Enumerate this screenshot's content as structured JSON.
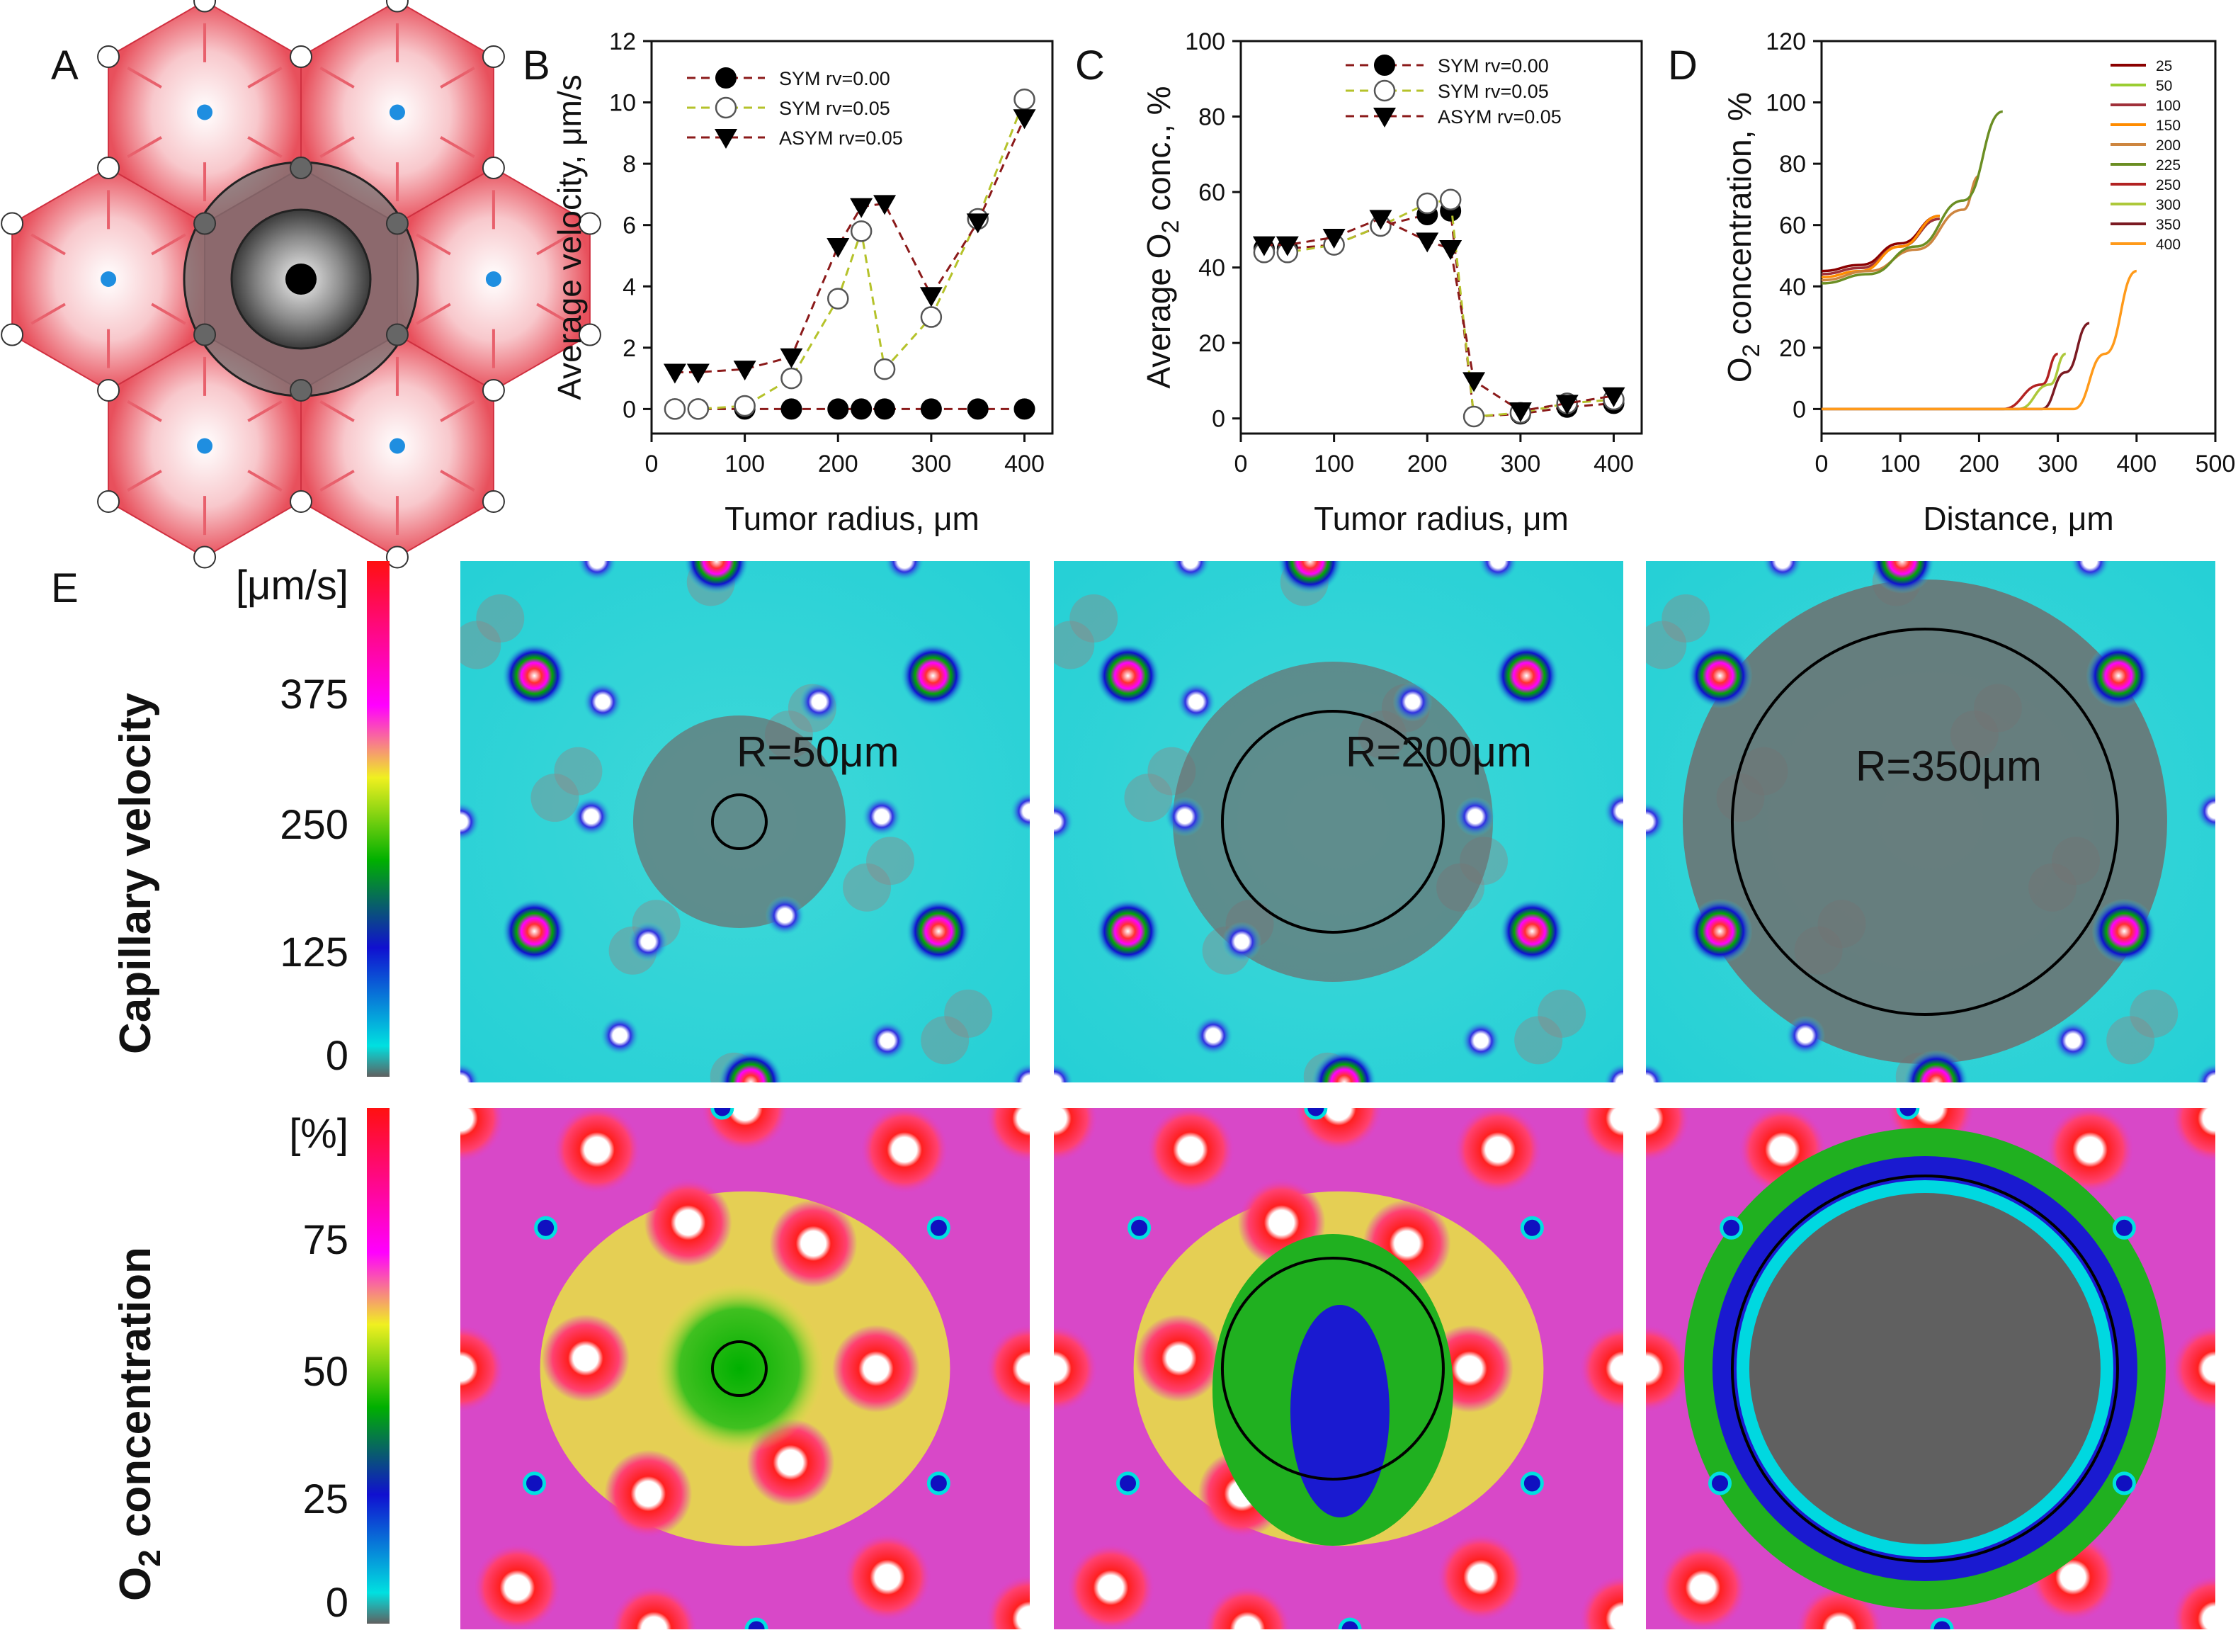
{
  "panel_labels": {
    "A": "A",
    "B": "B",
    "C": "C",
    "D": "D",
    "E": "E"
  },
  "chart_data": [
    {
      "id": "B",
      "type": "line",
      "title": "",
      "xlabel": "Tumor radius, μm",
      "ylabel": "Average velocity, μm/s",
      "xlim": [
        0,
        430
      ],
      "ylim": [
        -0.8,
        12
      ],
      "xticks": [
        0,
        100,
        200,
        300,
        400
      ],
      "yticks": [
        0,
        2,
        4,
        6,
        8,
        10,
        12
      ],
      "legend_position": "top-left",
      "series": [
        {
          "name": "SYM rv=0.00",
          "color": "#8b1a1a",
          "marker": "filled-circle",
          "x": [
            25,
            50,
            100,
            150,
            200,
            225,
            250,
            300,
            350,
            400
          ],
          "y": [
            0,
            0,
            0,
            0,
            0,
            0,
            0,
            0,
            0,
            0
          ]
        },
        {
          "name": "SYM rv=0.05",
          "color": "#b5c22a",
          "marker": "open-circle",
          "x": [
            25,
            50,
            100,
            150,
            200,
            225,
            250,
            300,
            350,
            400
          ],
          "y": [
            0,
            0,
            0.1,
            1.0,
            3.6,
            5.8,
            1.3,
            3.0,
            6.2,
            10.1
          ]
        },
        {
          "name": "ASYM rv=0.05",
          "color": "#8b1a1a",
          "marker": "down-triangle",
          "x": [
            25,
            50,
            100,
            150,
            200,
            225,
            250,
            300,
            350,
            400
          ],
          "y": [
            1.2,
            1.2,
            1.3,
            1.7,
            5.3,
            6.6,
            6.7,
            3.7,
            6.1,
            9.5
          ]
        }
      ]
    },
    {
      "id": "C",
      "type": "line",
      "title": "",
      "xlabel": "Tumor radius, μm",
      "ylabel": "Average O",
      "ylabel_sub": "2",
      "ylabel_tail": " conc., %",
      "xlim": [
        0,
        430
      ],
      "ylim": [
        -4,
        100
      ],
      "xticks": [
        0,
        100,
        200,
        300,
        400
      ],
      "yticks": [
        0,
        20,
        40,
        60,
        80,
        100
      ],
      "legend_position": "top-center",
      "series": [
        {
          "name": "SYM rv=0.00",
          "color": "#8b1a1a",
          "marker": "filled-circle",
          "x": [
            25,
            50,
            100,
            150,
            200,
            225,
            250,
            300,
            350,
            400
          ],
          "y": [
            45,
            45,
            46,
            51,
            54,
            55,
            0.5,
            1.2,
            3,
            4
          ]
        },
        {
          "name": "SYM rv=0.05",
          "color": "#b5c22a",
          "marker": "open-circle",
          "x": [
            25,
            50,
            100,
            150,
            200,
            225,
            250,
            300,
            350,
            400
          ],
          "y": [
            44,
            44,
            46,
            51,
            57,
            58,
            0.5,
            1.5,
            4,
            5
          ]
        },
        {
          "name": "ASYM rv=0.05",
          "color": "#8b1a1a",
          "marker": "down-triangle",
          "x": [
            25,
            50,
            100,
            150,
            200,
            225,
            250,
            300,
            350,
            400
          ],
          "y": [
            46,
            46,
            48,
            53,
            47,
            45,
            10,
            2,
            4,
            6
          ]
        }
      ]
    },
    {
      "id": "D",
      "type": "line",
      "title": "",
      "xlabel": "Distance, μm",
      "ylabel": "O",
      "ylabel_sub": "2",
      "ylabel_tail": " concentration, %",
      "xlim": [
        0,
        500
      ],
      "ylim": [
        -8,
        120
      ],
      "xticks": [
        0,
        100,
        200,
        300,
        400,
        500
      ],
      "yticks": [
        0,
        20,
        40,
        60,
        80,
        100,
        120
      ],
      "legend_position": "top-right",
      "series": [
        {
          "name": "25",
          "color": "#8b0000",
          "x": [
            0,
            50,
            100,
            150
          ],
          "y": [
            45,
            47,
            54,
            63
          ]
        },
        {
          "name": "50",
          "color": "#9acd32",
          "x": [
            0,
            50,
            100,
            150
          ],
          "y": [
            44,
            46,
            53,
            62
          ]
        },
        {
          "name": "100",
          "color": "#a0303a",
          "x": [
            0,
            50,
            100,
            150
          ],
          "y": [
            44,
            46,
            53,
            62
          ]
        },
        {
          "name": "150",
          "color": "#ff8c00",
          "x": [
            0,
            50,
            100,
            150
          ],
          "y": [
            43,
            45,
            53,
            63
          ]
        },
        {
          "name": "200",
          "color": "#cd853f",
          "x": [
            0,
            60,
            120,
            180,
            200
          ],
          "y": [
            42,
            45,
            52,
            65,
            76
          ]
        },
        {
          "name": "225",
          "color": "#6b8e23",
          "x": [
            0,
            60,
            120,
            180,
            230
          ],
          "y": [
            41,
            44,
            53,
            68,
            97
          ]
        },
        {
          "name": "250",
          "color": "#b22222",
          "x": [
            0,
            230,
            280,
            300
          ],
          "y": [
            0,
            0,
            8,
            18
          ]
        },
        {
          "name": "300",
          "color": "#adc83a",
          "x": [
            0,
            250,
            290,
            310
          ],
          "y": [
            0,
            0,
            8,
            18
          ]
        },
        {
          "name": "350",
          "color": "#7b1a22",
          "x": [
            0,
            280,
            310,
            340
          ],
          "y": [
            0,
            0,
            12,
            28
          ]
        },
        {
          "name": "400",
          "color": "#ff9a1a",
          "x": [
            0,
            320,
            360,
            400
          ],
          "y": [
            0,
            0,
            18,
            45
          ]
        }
      ]
    }
  ],
  "panel_e": {
    "row1_title": "Capillary velocity",
    "row1_unit": "[μm/s]",
    "row1_ticks": [
      "375",
      "250",
      "125",
      "0"
    ],
    "row2_title_prefix": "O",
    "row2_title_sub": "2",
    "row2_title_suffix": " concentration",
    "row2_unit": "[%]",
    "row2_ticks": [
      "75",
      "50",
      "25",
      "0"
    ],
    "radius_labels": [
      "R=50μm",
      "R=200μm",
      "R=350μm"
    ],
    "tumor_radii": [
      50,
      200,
      350
    ]
  }
}
